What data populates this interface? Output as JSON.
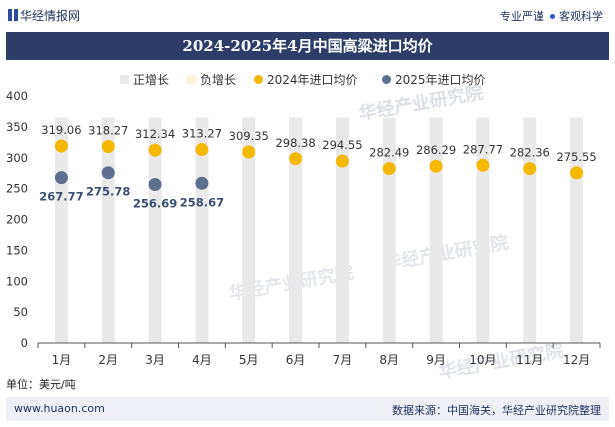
{
  "header": {
    "brand": "华经情报网",
    "tagline_left": "专业严谨",
    "tagline_right": "客观科学"
  },
  "chart_data": {
    "type": "bar+scatter",
    "title": "2024-2025年4月中国高粱进口均价",
    "unit_label": "单位：美元/吨",
    "categories": [
      "1月",
      "2月",
      "3月",
      "4月",
      "5月",
      "6月",
      "7月",
      "8月",
      "9月",
      "10月",
      "11月",
      "12月"
    ],
    "legend": [
      "正增长",
      "负增长",
      "2024年进口均价",
      "2025年进口均价"
    ],
    "legend_position": "top",
    "ylim": [
      0,
      400
    ],
    "yticks": [
      0,
      50,
      100,
      150,
      200,
      250,
      300,
      350,
      400
    ],
    "series": [
      {
        "name": "2024年进口均价",
        "color": "#f5b800",
        "values": [
          319.06,
          318.27,
          312.34,
          313.27,
          309.35,
          298.38,
          294.55,
          282.49,
          286.29,
          287.77,
          282.36,
          275.55
        ]
      },
      {
        "name": "2025年进口均价",
        "color": "#5c6f8f",
        "values": [
          267.77,
          275.78,
          256.69,
          258.67,
          null,
          null,
          null,
          null,
          null,
          null,
          null,
          null
        ]
      }
    ],
    "bars": {
      "positive_color": "#e9e9ea",
      "negative_color": "#fdf3da",
      "background_value": 365
    },
    "grid": false
  },
  "footer": {
    "website": "www.huaon.com",
    "source": "数据来源：中国海关，华经产业研究院整理"
  },
  "watermark": "华经产业研究院",
  "watermark_url": "www.huaon.com"
}
